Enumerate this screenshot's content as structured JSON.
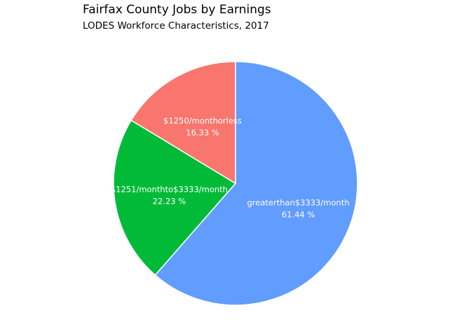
{
  "chart_data": {
    "type": "pie",
    "title": "Fairfax County Jobs by Earnings",
    "subtitle": "LODES Workforce Characteristics, 2017",
    "start": "top",
    "direction": "clockwise",
    "slices": [
      {
        "name": "greaterthan$3333/month",
        "value": 61.44,
        "value_label": "61.44 %",
        "color": "#619CFF"
      },
      {
        "name": "$1251/monthto$3333/month",
        "value": 22.23,
        "value_label": "22.23 %",
        "color": "#00BA38"
      },
      {
        "name": "$1250/monthorless",
        "value": 16.33,
        "value_label": "16.33 %",
        "color": "#F8766D"
      }
    ]
  }
}
